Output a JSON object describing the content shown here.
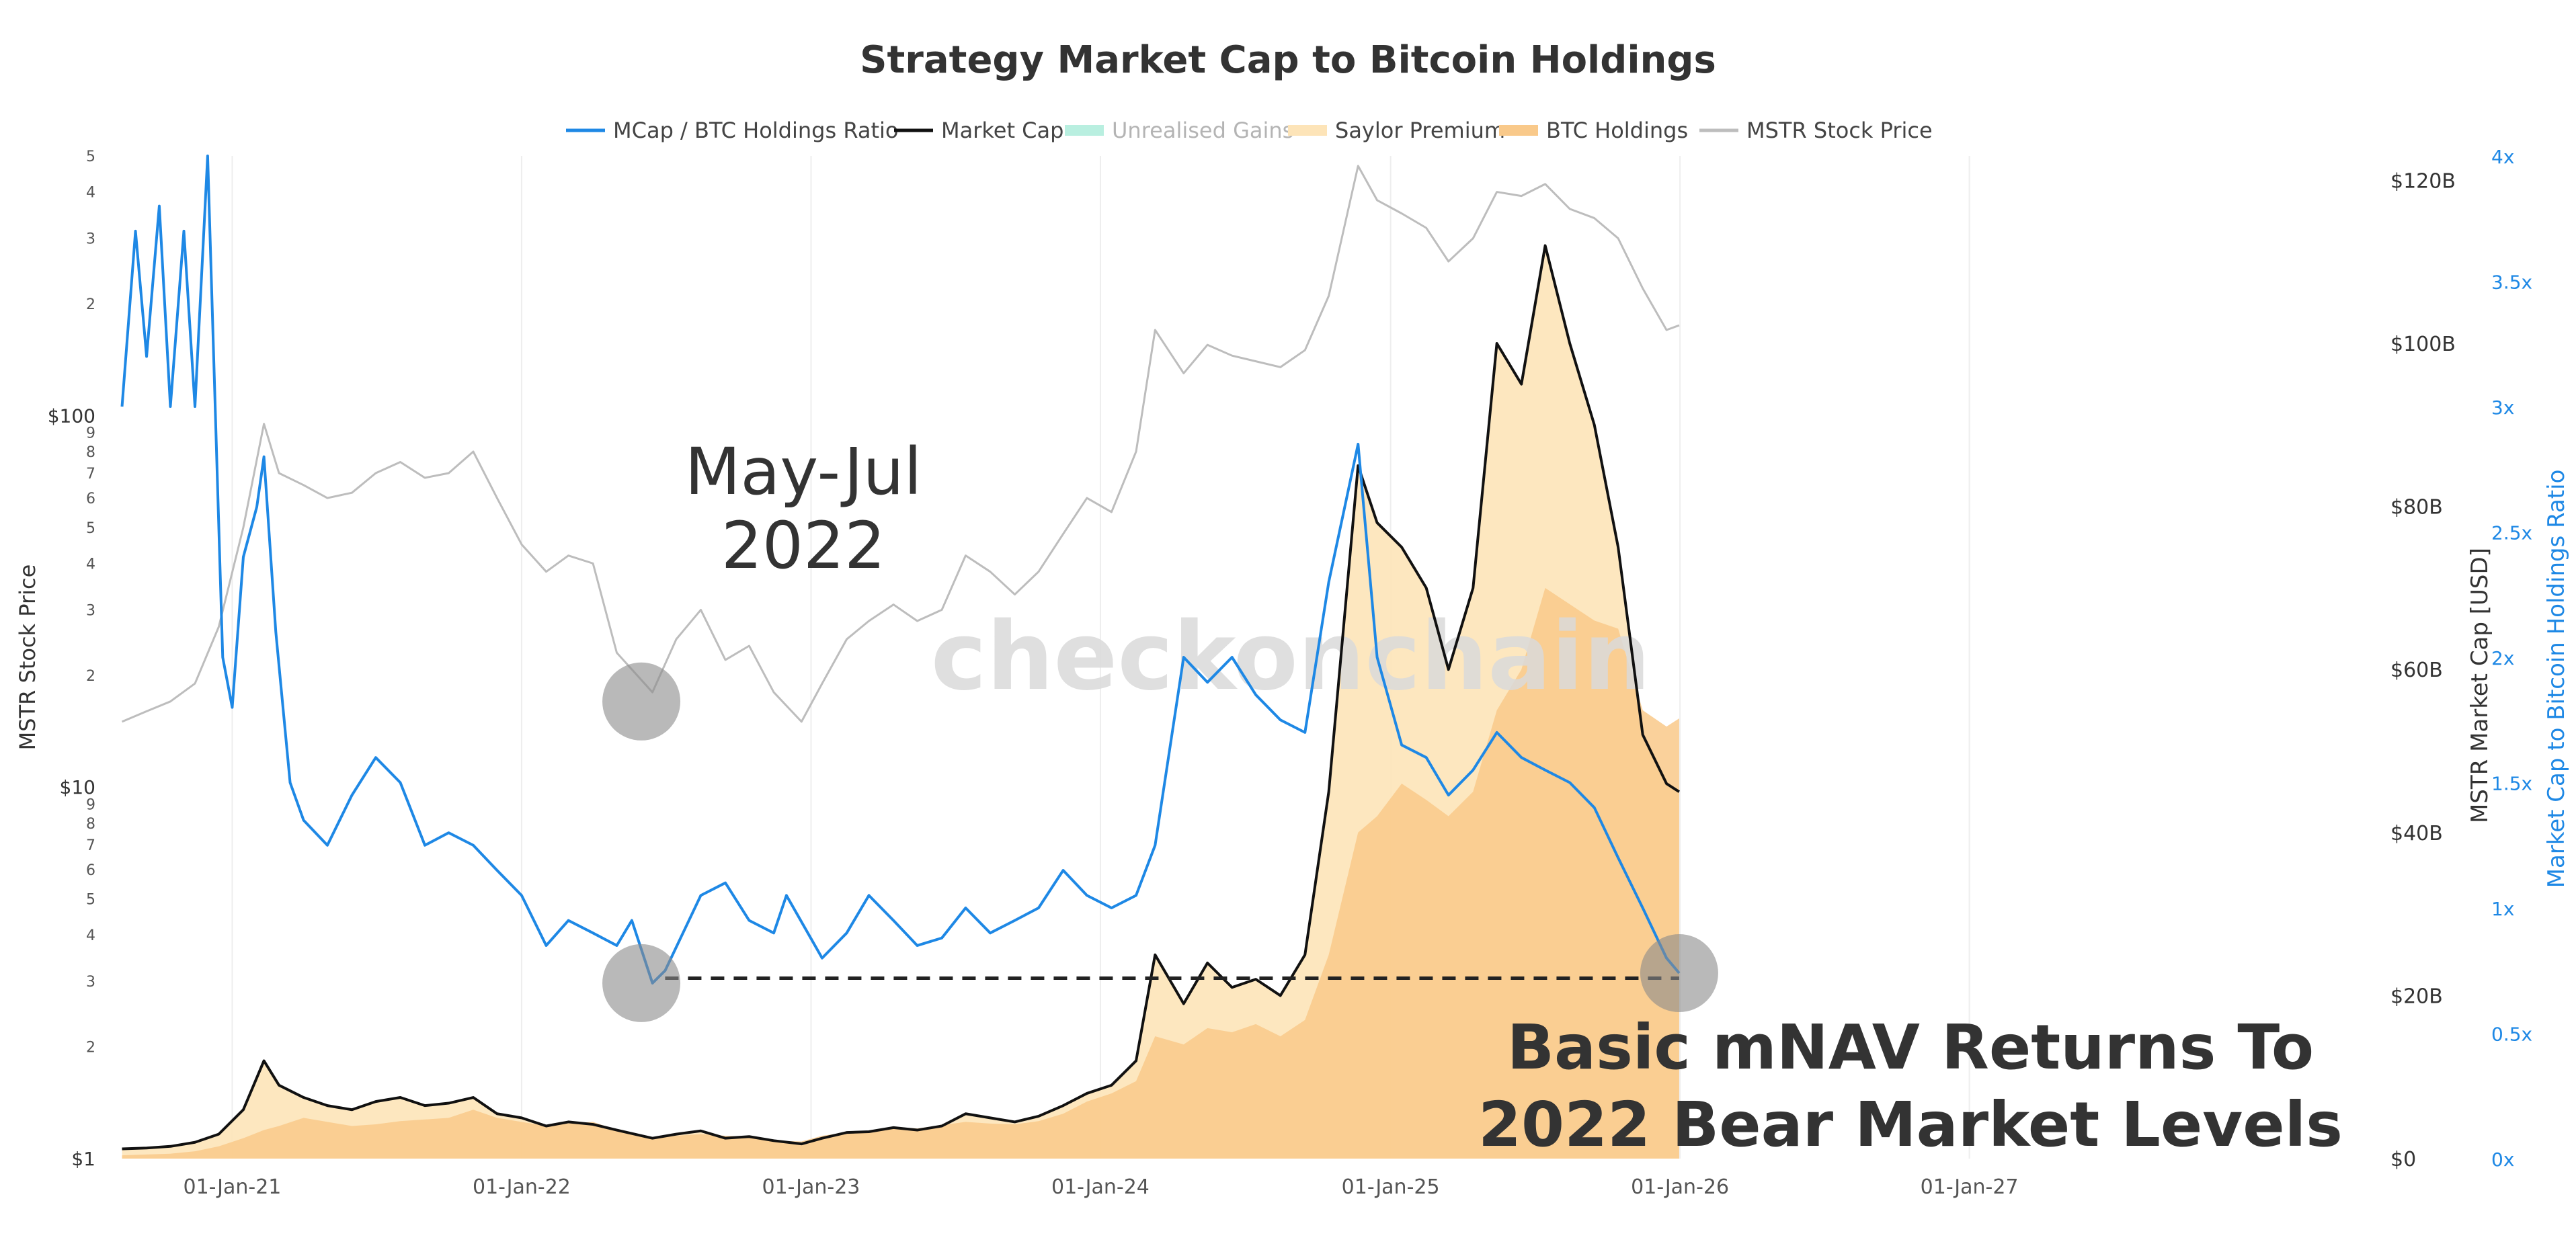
{
  "chart_data": {
    "type": "line",
    "title": "Strategy Market Cap to Bitcoin Holdings",
    "legend_position": "top-center",
    "grid": "vertical",
    "watermark": "checkonchain",
    "annotations": {
      "may_jul_1": "May-Jul",
      "may_jul_2": "2022",
      "headline_1": "Basic mNAV Returns To",
      "headline_2": "2022 Bear Market Levels"
    },
    "reference_line": {
      "style": "dashed",
      "axis": "ratio",
      "value": 0.72,
      "x_start": "2022-07-01",
      "x_end": "2025-12-31"
    },
    "highlight_circles": [
      {
        "x": "2022-06-01",
        "axis": "stock",
        "value": 17
      },
      {
        "x": "2022-06-01",
        "axis": "ratio",
        "value": 0.7
      },
      {
        "x": "2025-12-31",
        "axis": "ratio",
        "value": 0.74
      }
    ],
    "x_axis": {
      "range": [
        "2020-08-01",
        "2027-01-31"
      ],
      "ticks": [
        "01-Jan-21",
        "01-Jan-22",
        "01-Jan-23",
        "01-Jan-24",
        "01-Jan-25",
        "01-Jan-26",
        "01-Jan-27"
      ],
      "tick_dates": [
        "2021-01-01",
        "2022-01-01",
        "2023-01-01",
        "2024-01-01",
        "2025-01-01",
        "2026-01-01",
        "2027-01-01"
      ]
    },
    "y_axis_left": {
      "label": "MSTR Stock Price",
      "scale": "log",
      "range": [
        1,
        500
      ],
      "major_ticks": [
        {
          "v": 1,
          "label": "$1"
        },
        {
          "v": 10,
          "label": "$10"
        },
        {
          "v": 100,
          "label": "$100"
        }
      ],
      "minor_ticks": [
        {
          "v": 2,
          "label": "2"
        },
        {
          "v": 3,
          "label": "3"
        },
        {
          "v": 4,
          "label": "4"
        },
        {
          "v": 5,
          "label": "5"
        },
        {
          "v": 6,
          "label": "6"
        },
        {
          "v": 7,
          "label": "7"
        },
        {
          "v": 8,
          "label": "8"
        },
        {
          "v": 9,
          "label": "9"
        },
        {
          "v": 20,
          "label": "2"
        },
        {
          "v": 30,
          "label": "3"
        },
        {
          "v": 40,
          "label": "4"
        },
        {
          "v": 50,
          "label": "5"
        },
        {
          "v": 60,
          "label": "6"
        },
        {
          "v": 70,
          "label": "7"
        },
        {
          "v": 80,
          "label": "8"
        },
        {
          "v": 90,
          "label": "9"
        },
        {
          "v": 200,
          "label": "2"
        },
        {
          "v": 300,
          "label": "3"
        },
        {
          "v": 400,
          "label": "4"
        },
        {
          "v": 500,
          "label": "5"
        }
      ]
    },
    "y_axis_right1": {
      "label": "MSTR Market Cap [USD]",
      "scale": "linear",
      "range": [
        0,
        123
      ],
      "unit": "billion USD",
      "ticks": [
        {
          "v": 0,
          "label": "$0"
        },
        {
          "v": 20,
          "label": "$20B"
        },
        {
          "v": 40,
          "label": "$40B"
        },
        {
          "v": 60,
          "label": "$60B"
        },
        {
          "v": 80,
          "label": "$80B"
        },
        {
          "v": 100,
          "label": "$100B"
        },
        {
          "v": 120,
          "label": "$120B"
        }
      ]
    },
    "y_axis_right2": {
      "label": "Market Cap to Bitcoin Holdings Ratio",
      "scale": "linear",
      "range": [
        0,
        4
      ],
      "color": "#1e88e5",
      "ticks": [
        {
          "v": 0,
          "label": "0x"
        },
        {
          "v": 0.5,
          "label": "0.5x"
        },
        {
          "v": 1,
          "label": "1x"
        },
        {
          "v": 1.5,
          "label": "1.5x"
        },
        {
          "v": 2,
          "label": "2x"
        },
        {
          "v": 2.5,
          "label": "2.5x"
        },
        {
          "v": 3,
          "label": "3x"
        },
        {
          "v": 3.5,
          "label": "3.5x"
        },
        {
          "v": 4,
          "label": "4x"
        }
      ]
    },
    "legend": [
      {
        "name": "MCap / BTC Holdings Ratio",
        "color": "#1e88e5",
        "kind": "line"
      },
      {
        "name": "Market Cap",
        "color": "#111111",
        "kind": "line"
      },
      {
        "name": "Unrealised Gains",
        "color": "#b9efe0",
        "kind": "area",
        "muted": true
      },
      {
        "name": "Saylor Premium",
        "color": "#fde4b8",
        "kind": "area"
      },
      {
        "name": "BTC Holdings",
        "color": "#f9c98a",
        "kind": "area"
      },
      {
        "name": "MSTR Stock Price",
        "color": "#bdbdbd",
        "kind": "line"
      }
    ],
    "series": [
      {
        "name": "MSTR Stock Price",
        "axis": "stock",
        "color": "#bdbdbd",
        "x": [
          "2020-08-15",
          "2020-09-15",
          "2020-10-15",
          "2020-11-15",
          "2020-12-15",
          "2021-01-15",
          "2021-02-10",
          "2021-03-01",
          "2021-04-01",
          "2021-05-01",
          "2021-06-01",
          "2021-07-01",
          "2021-08-01",
          "2021-09-01",
          "2021-10-01",
          "2021-11-01",
          "2021-12-01",
          "2022-01-01",
          "2022-02-01",
          "2022-03-01",
          "2022-04-01",
          "2022-05-01",
          "2022-06-15",
          "2022-07-15",
          "2022-08-15",
          "2022-09-15",
          "2022-10-15",
          "2022-11-15",
          "2022-12-20",
          "2023-01-15",
          "2023-02-15",
          "2023-03-15",
          "2023-04-15",
          "2023-05-15",
          "2023-06-15",
          "2023-07-15",
          "2023-08-15",
          "2023-09-15",
          "2023-10-15",
          "2023-11-15",
          "2023-12-15",
          "2024-01-15",
          "2024-02-15",
          "2024-03-10",
          "2024-04-15",
          "2024-05-15",
          "2024-06-15",
          "2024-07-15",
          "2024-08-15",
          "2024-09-15",
          "2024-10-15",
          "2024-11-21",
          "2024-12-15",
          "2025-01-15",
          "2025-02-15",
          "2025-03-15",
          "2025-04-15",
          "2025-05-15",
          "2025-06-15",
          "2025-07-15",
          "2025-08-15",
          "2025-09-15",
          "2025-10-15",
          "2025-11-15",
          "2025-12-15",
          "2025-12-31"
        ],
        "values": [
          15,
          16,
          17,
          19,
          27,
          50,
          95,
          70,
          65,
          60,
          62,
          70,
          75,
          68,
          70,
          80,
          60,
          45,
          38,
          42,
          40,
          23,
          18,
          25,
          30,
          22,
          24,
          18,
          15,
          19,
          25,
          28,
          31,
          28,
          30,
          42,
          38,
          33,
          38,
          48,
          60,
          55,
          80,
          170,
          130,
          155,
          145,
          140,
          135,
          150,
          210,
          470,
          380,
          350,
          320,
          260,
          300,
          400,
          390,
          420,
          360,
          340,
          300,
          220,
          170,
          175
        ]
      },
      {
        "name": "Market Cap",
        "axis": "mcap",
        "color": "#111111",
        "x": [
          "2020-08-15",
          "2020-09-15",
          "2020-10-15",
          "2020-11-15",
          "2020-12-15",
          "2021-01-15",
          "2021-02-10",
          "2021-03-01",
          "2021-04-01",
          "2021-05-01",
          "2021-06-01",
          "2021-07-01",
          "2021-08-01",
          "2021-09-01",
          "2021-10-01",
          "2021-11-01",
          "2021-12-01",
          "2022-01-01",
          "2022-02-01",
          "2022-03-01",
          "2022-04-01",
          "2022-05-01",
          "2022-06-15",
          "2022-07-15",
          "2022-08-15",
          "2022-09-15",
          "2022-10-15",
          "2022-11-15",
          "2022-12-20",
          "2023-01-15",
          "2023-02-15",
          "2023-03-15",
          "2023-04-15",
          "2023-05-15",
          "2023-06-15",
          "2023-07-15",
          "2023-08-15",
          "2023-09-15",
          "2023-10-15",
          "2023-11-15",
          "2023-12-15",
          "2024-01-15",
          "2024-02-15",
          "2024-03-10",
          "2024-04-15",
          "2024-05-15",
          "2024-06-15",
          "2024-07-15",
          "2024-08-15",
          "2024-09-15",
          "2024-10-15",
          "2024-11-21",
          "2024-12-15",
          "2025-01-15",
          "2025-02-15",
          "2025-03-15",
          "2025-04-15",
          "2025-05-15",
          "2025-06-15",
          "2025-07-15",
          "2025-08-15",
          "2025-09-15",
          "2025-10-15",
          "2025-11-15",
          "2025-12-15",
          "2025-12-31"
        ],
        "values": [
          1.2,
          1.3,
          1.5,
          2.0,
          3.0,
          6.0,
          12.0,
          9.0,
          7.5,
          6.5,
          6.0,
          7.0,
          7.5,
          6.5,
          6.8,
          7.5,
          5.5,
          5.0,
          4.0,
          4.5,
          4.2,
          3.5,
          2.5,
          3.0,
          3.4,
          2.5,
          2.7,
          2.2,
          1.8,
          2.5,
          3.2,
          3.3,
          3.8,
          3.5,
          4.0,
          5.5,
          5.0,
          4.5,
          5.2,
          6.5,
          8.0,
          9.0,
          12.0,
          25.0,
          19.0,
          24.0,
          21.0,
          22.0,
          20.0,
          25.0,
          45.0,
          85.0,
          78.0,
          75.0,
          70.0,
          60.0,
          70.0,
          100.0,
          95.0,
          112.0,
          100.0,
          90.0,
          75.0,
          52.0,
          46.0,
          45.0
        ]
      },
      {
        "name": "BTC Holdings",
        "axis": "mcap",
        "color": "#f9c98a",
        "x": [
          "2020-08-15",
          "2020-09-15",
          "2020-10-15",
          "2020-11-15",
          "2020-12-15",
          "2021-01-15",
          "2021-02-10",
          "2021-03-01",
          "2021-04-01",
          "2021-05-01",
          "2021-06-01",
          "2021-07-01",
          "2021-08-01",
          "2021-09-01",
          "2021-10-01",
          "2021-11-01",
          "2021-12-01",
          "2022-01-01",
          "2022-02-01",
          "2022-03-01",
          "2022-04-01",
          "2022-05-01",
          "2022-06-15",
          "2022-07-15",
          "2022-08-15",
          "2022-09-15",
          "2022-10-15",
          "2022-11-15",
          "2022-12-20",
          "2023-01-15",
          "2023-02-15",
          "2023-03-15",
          "2023-04-15",
          "2023-05-15",
          "2023-06-15",
          "2023-07-15",
          "2023-08-15",
          "2023-09-15",
          "2023-10-15",
          "2023-11-15",
          "2023-12-15",
          "2024-01-15",
          "2024-02-15",
          "2024-03-10",
          "2024-04-15",
          "2024-05-15",
          "2024-06-15",
          "2024-07-15",
          "2024-08-15",
          "2024-09-15",
          "2024-10-15",
          "2024-11-21",
          "2024-12-15",
          "2025-01-15",
          "2025-02-15",
          "2025-03-15",
          "2025-04-15",
          "2025-05-15",
          "2025-06-15",
          "2025-07-15",
          "2025-08-15",
          "2025-09-15",
          "2025-10-15",
          "2025-11-15",
          "2025-12-15",
          "2025-12-31"
        ],
        "values": [
          0.4,
          0.5,
          0.6,
          0.9,
          1.5,
          2.5,
          3.5,
          4.0,
          5.0,
          4.5,
          4.0,
          4.2,
          4.6,
          4.8,
          5.0,
          6.0,
          5.0,
          4.5,
          4.0,
          4.3,
          4.5,
          3.5,
          2.6,
          2.8,
          3.0,
          2.8,
          2.7,
          2.2,
          2.1,
          2.8,
          3.2,
          3.4,
          3.9,
          3.7,
          4.1,
          4.5,
          4.3,
          4.2,
          4.6,
          5.5,
          7.0,
          8.0,
          9.5,
          15.0,
          14.0,
          16.0,
          15.5,
          16.5,
          15.0,
          17.0,
          25.0,
          40.0,
          42.0,
          46.0,
          44.0,
          42.0,
          45.0,
          55.0,
          60.0,
          70.0,
          68.0,
          66.0,
          65.0,
          55.0,
          53.0,
          54.0
        ]
      },
      {
        "name": "MCap / BTC Holdings Ratio",
        "axis": "ratio",
        "color": "#1e88e5",
        "x": [
          "2020-08-15",
          "2020-09-01",
          "2020-09-15",
          "2020-10-01",
          "2020-10-15",
          "2020-11-01",
          "2020-11-15",
          "2020-12-01",
          "2020-12-20",
          "2021-01-01",
          "2021-01-15",
          "2021-02-01",
          "2021-02-10",
          "2021-02-25",
          "2021-03-15",
          "2021-04-01",
          "2021-05-01",
          "2021-06-01",
          "2021-07-01",
          "2021-08-01",
          "2021-09-01",
          "2021-10-01",
          "2021-11-01",
          "2021-12-01",
          "2022-01-01",
          "2022-02-01",
          "2022-03-01",
          "2022-04-01",
          "2022-05-01",
          "2022-05-20",
          "2022-06-15",
          "2022-07-01",
          "2022-08-15",
          "2022-09-15",
          "2022-10-15",
          "2022-11-15",
          "2022-12-01",
          "2023-01-15",
          "2023-02-15",
          "2023-03-15",
          "2023-04-15",
          "2023-05-15",
          "2023-06-15",
          "2023-07-15",
          "2023-08-15",
          "2023-09-15",
          "2023-10-15",
          "2023-11-15",
          "2023-12-15",
          "2024-01-15",
          "2024-02-15",
          "2024-03-10",
          "2024-04-15",
          "2024-05-15",
          "2024-06-15",
          "2024-07-15",
          "2024-08-15",
          "2024-09-15",
          "2024-10-15",
          "2024-11-21",
          "2024-12-15",
          "2025-01-15",
          "2025-02-15",
          "2025-03-15",
          "2025-04-15",
          "2025-05-15",
          "2025-06-15",
          "2025-07-15",
          "2025-08-15",
          "2025-09-15",
          "2025-10-15",
          "2025-11-15",
          "2025-12-15",
          "2025-12-31"
        ],
        "values": [
          3.0,
          3.7,
          3.2,
          3.8,
          3.0,
          3.7,
          3.0,
          4.0,
          2.0,
          1.8,
          2.4,
          2.6,
          2.8,
          2.1,
          1.5,
          1.35,
          1.25,
          1.45,
          1.6,
          1.5,
          1.25,
          1.3,
          1.25,
          1.15,
          1.05,
          0.85,
          0.95,
          0.9,
          0.85,
          0.95,
          0.7,
          0.75,
          1.05,
          1.1,
          0.95,
          0.9,
          1.05,
          0.8,
          0.9,
          1.05,
          0.95,
          0.85,
          0.88,
          1.0,
          0.9,
          0.95,
          1.0,
          1.15,
          1.05,
          1.0,
          1.05,
          1.25,
          2.0,
          1.9,
          2.0,
          1.85,
          1.75,
          1.7,
          2.3,
          2.85,
          2.0,
          1.65,
          1.6,
          1.45,
          1.55,
          1.7,
          1.6,
          1.55,
          1.5,
          1.4,
          1.2,
          1.0,
          0.8,
          0.74
        ]
      }
    ]
  }
}
